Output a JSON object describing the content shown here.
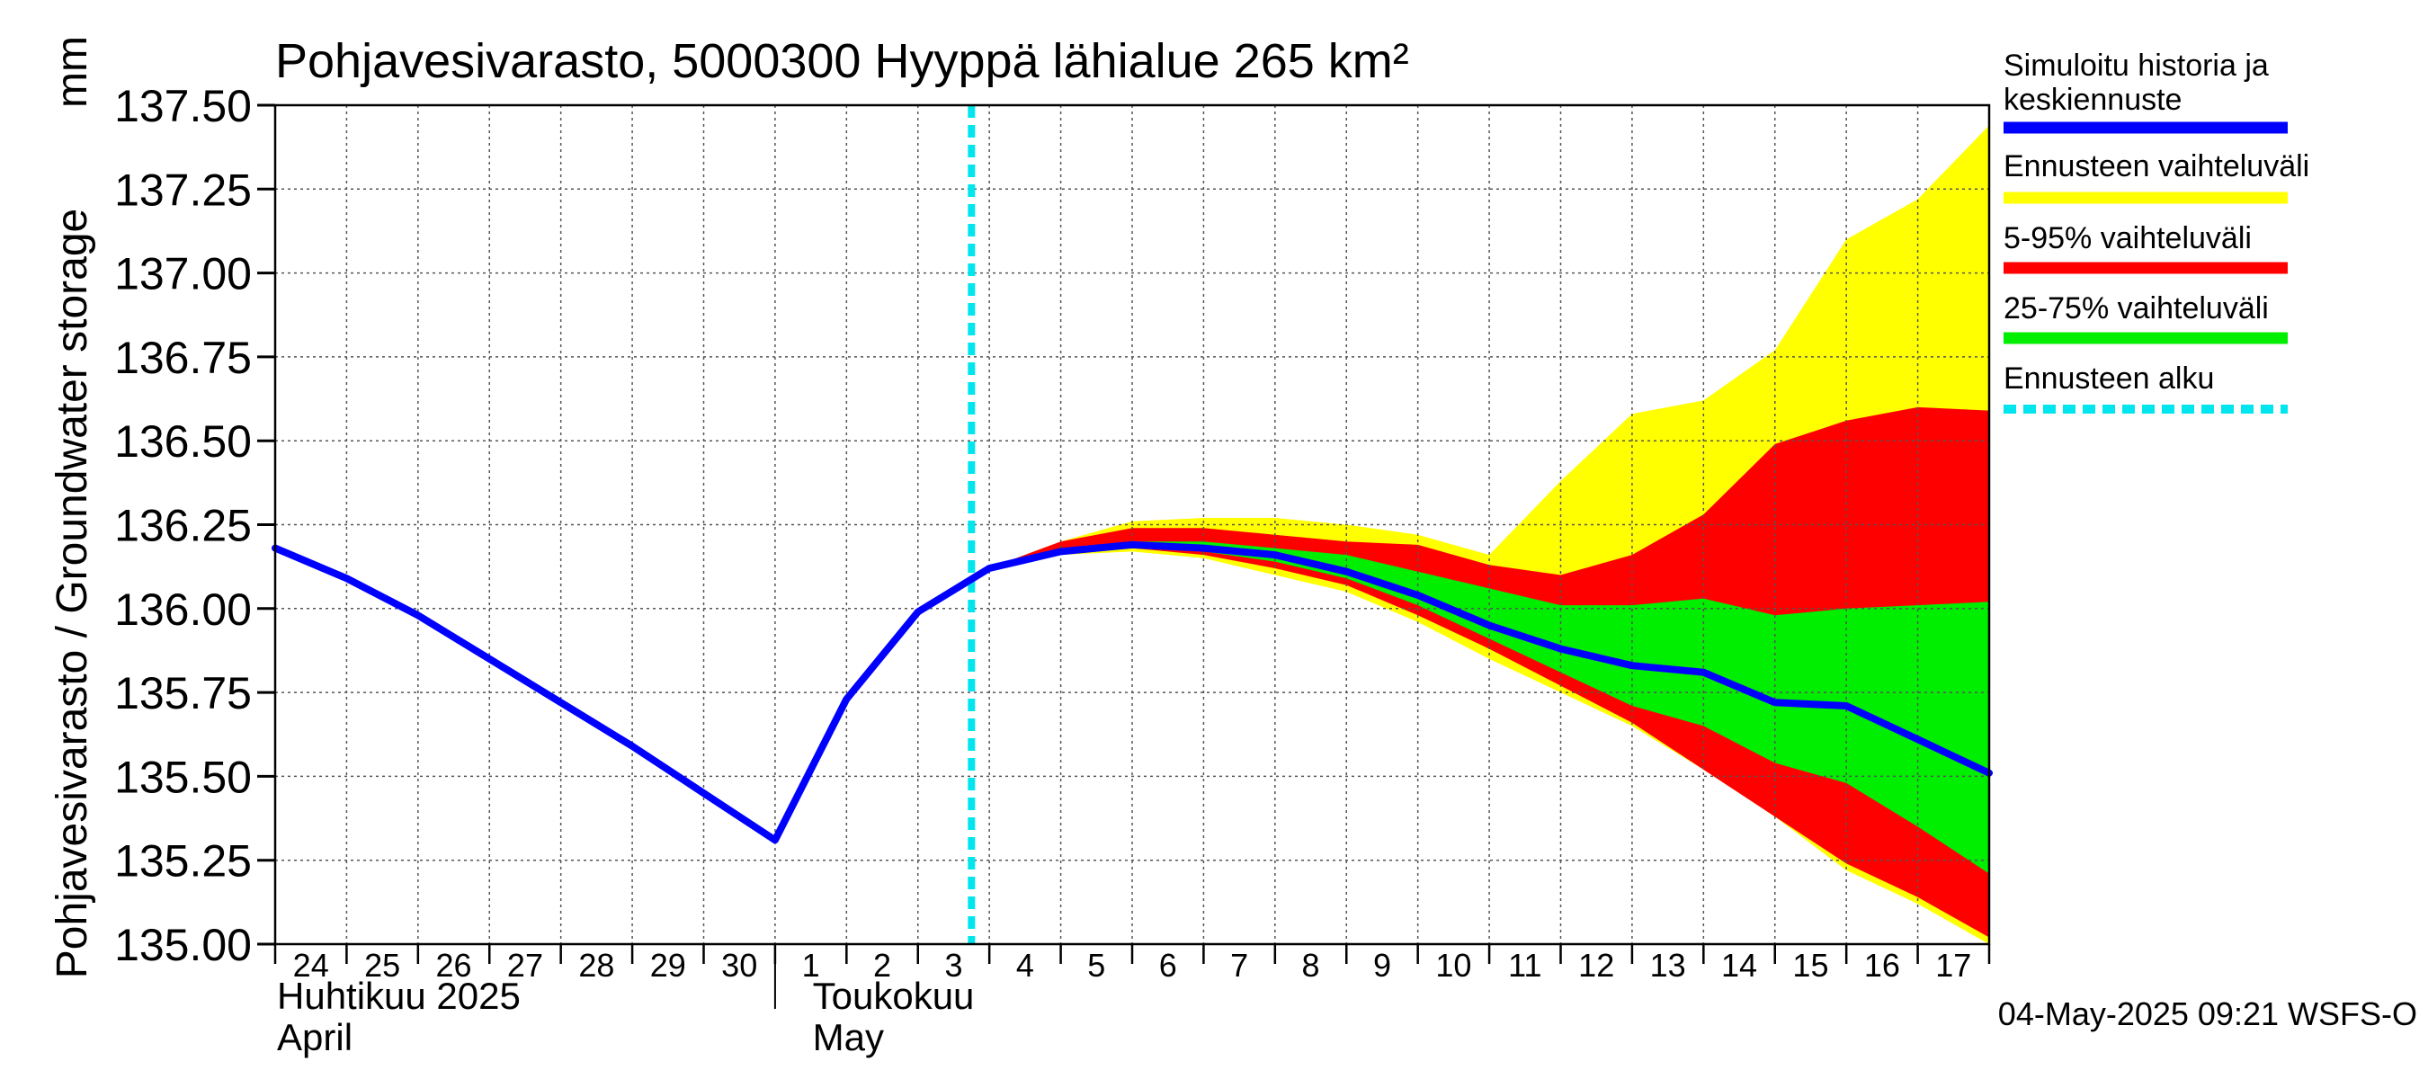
{
  "chart_data": {
    "type": "area",
    "title": "Pohjavesivarasto, 5000300 Hyyppä lähialue 265 km²",
    "ylabel": "Pohjavesivarasto / Groundwater storage",
    "yunit": "mm",
    "ylim": [
      135.0,
      137.5
    ],
    "yticks": [
      135.0,
      135.25,
      135.5,
      135.75,
      136.0,
      136.25,
      136.5,
      136.75,
      137.0,
      137.25,
      137.5
    ],
    "ytick_labels": [
      "135.00",
      "135.25",
      "135.50",
      "135.75",
      "136.00",
      "136.25",
      "136.50",
      "136.75",
      "137.00",
      "137.25",
      "137.50"
    ],
    "x_start": "2025-04-24",
    "x_days": 24,
    "xtick_labels": [
      "24",
      "25",
      "26",
      "27",
      "28",
      "29",
      "30",
      "1",
      "2",
      "3",
      "4",
      "5",
      "6",
      "7",
      "8",
      "9",
      "10",
      "11",
      "12",
      "13",
      "14",
      "15",
      "16",
      "17"
    ],
    "month_labels": [
      {
        "fi": "Huhtikuu  2025",
        "en": "April",
        "day_index": 0
      },
      {
        "fi": "Toukokuu",
        "en": "May",
        "day_index": 7.5
      }
    ],
    "month_separator_day": 7.0,
    "forecast_start_day": 9.75,
    "series": [
      {
        "name": "Simuloitu historia ja keskiennuste",
        "color": "#0000ff",
        "x": [
          0,
          1,
          2,
          3,
          4,
          5,
          6,
          7,
          8,
          9,
          10,
          11,
          12,
          13,
          14,
          15,
          16,
          17,
          18,
          19,
          20,
          21,
          22,
          23,
          24
        ],
        "values": [
          136.18,
          136.09,
          135.98,
          135.85,
          135.72,
          135.59,
          135.45,
          135.31,
          135.73,
          135.99,
          136.12,
          136.17,
          136.19,
          136.18,
          136.16,
          136.11,
          136.04,
          135.95,
          135.88,
          135.83,
          135.81,
          135.72,
          135.71,
          135.61,
          135.51
        ]
      }
    ],
    "bands": [
      {
        "name": "Ennusteen vaihteluväli",
        "color": "#ffff00",
        "x": [
          10,
          11,
          12,
          13,
          14,
          15,
          16,
          17,
          18,
          19,
          20,
          21,
          22,
          23,
          24
        ],
        "upper": [
          136.12,
          136.2,
          136.26,
          136.27,
          136.27,
          136.25,
          136.22,
          136.16,
          136.38,
          136.58,
          136.62,
          136.77,
          137.1,
          137.22,
          137.44
        ],
        "lower": [
          136.11,
          136.16,
          136.17,
          136.15,
          136.1,
          136.05,
          135.96,
          135.85,
          135.75,
          135.65,
          135.52,
          135.38,
          135.22,
          135.12,
          135.0
        ]
      },
      {
        "name": "5-95% vaihteluväli",
        "color": "#ff0000",
        "x": [
          10,
          11,
          12,
          13,
          14,
          15,
          16,
          17,
          18,
          19,
          20,
          21,
          22,
          23,
          24
        ],
        "upper": [
          136.12,
          136.2,
          136.24,
          136.24,
          136.22,
          136.2,
          136.19,
          136.13,
          136.1,
          136.16,
          136.28,
          136.49,
          136.56,
          136.6,
          136.59
        ],
        "lower": [
          136.11,
          136.16,
          136.18,
          136.16,
          136.12,
          136.07,
          135.98,
          135.88,
          135.77,
          135.66,
          135.52,
          135.38,
          135.24,
          135.14,
          135.02
        ]
      },
      {
        "name": "25-75% vaihteluväli",
        "color": "#00ee00",
        "x": [
          10,
          11,
          12,
          13,
          14,
          15,
          16,
          17,
          18,
          19,
          20,
          21,
          22,
          23,
          24
        ],
        "upper": [
          136.12,
          136.18,
          136.2,
          136.2,
          136.18,
          136.16,
          136.11,
          136.06,
          136.01,
          136.01,
          136.03,
          135.98,
          136.0,
          136.01,
          136.02
        ],
        "lower": [
          136.11,
          136.17,
          136.19,
          136.17,
          136.14,
          136.09,
          136.01,
          135.91,
          135.81,
          135.71,
          135.65,
          135.54,
          135.48,
          135.35,
          135.21
        ]
      }
    ],
    "legend": [
      {
        "label": "Simuloitu historia ja keskiennuste",
        "color": "#0000ff",
        "style": "solid"
      },
      {
        "label": "Ennusteen vaihteluväli",
        "color": "#ffff00",
        "style": "solid"
      },
      {
        "label": "5-95% vaihteluväli",
        "color": "#ff0000",
        "style": "solid"
      },
      {
        "label": "25-75% vaihteluväli",
        "color": "#00ee00",
        "style": "solid"
      },
      {
        "label": "Ennusteen alku",
        "color": "#00e5ee",
        "style": "dashed"
      }
    ],
    "legend_position": "right",
    "grid": true,
    "footer": "04-May-2025 09:21 WSFS-O"
  }
}
